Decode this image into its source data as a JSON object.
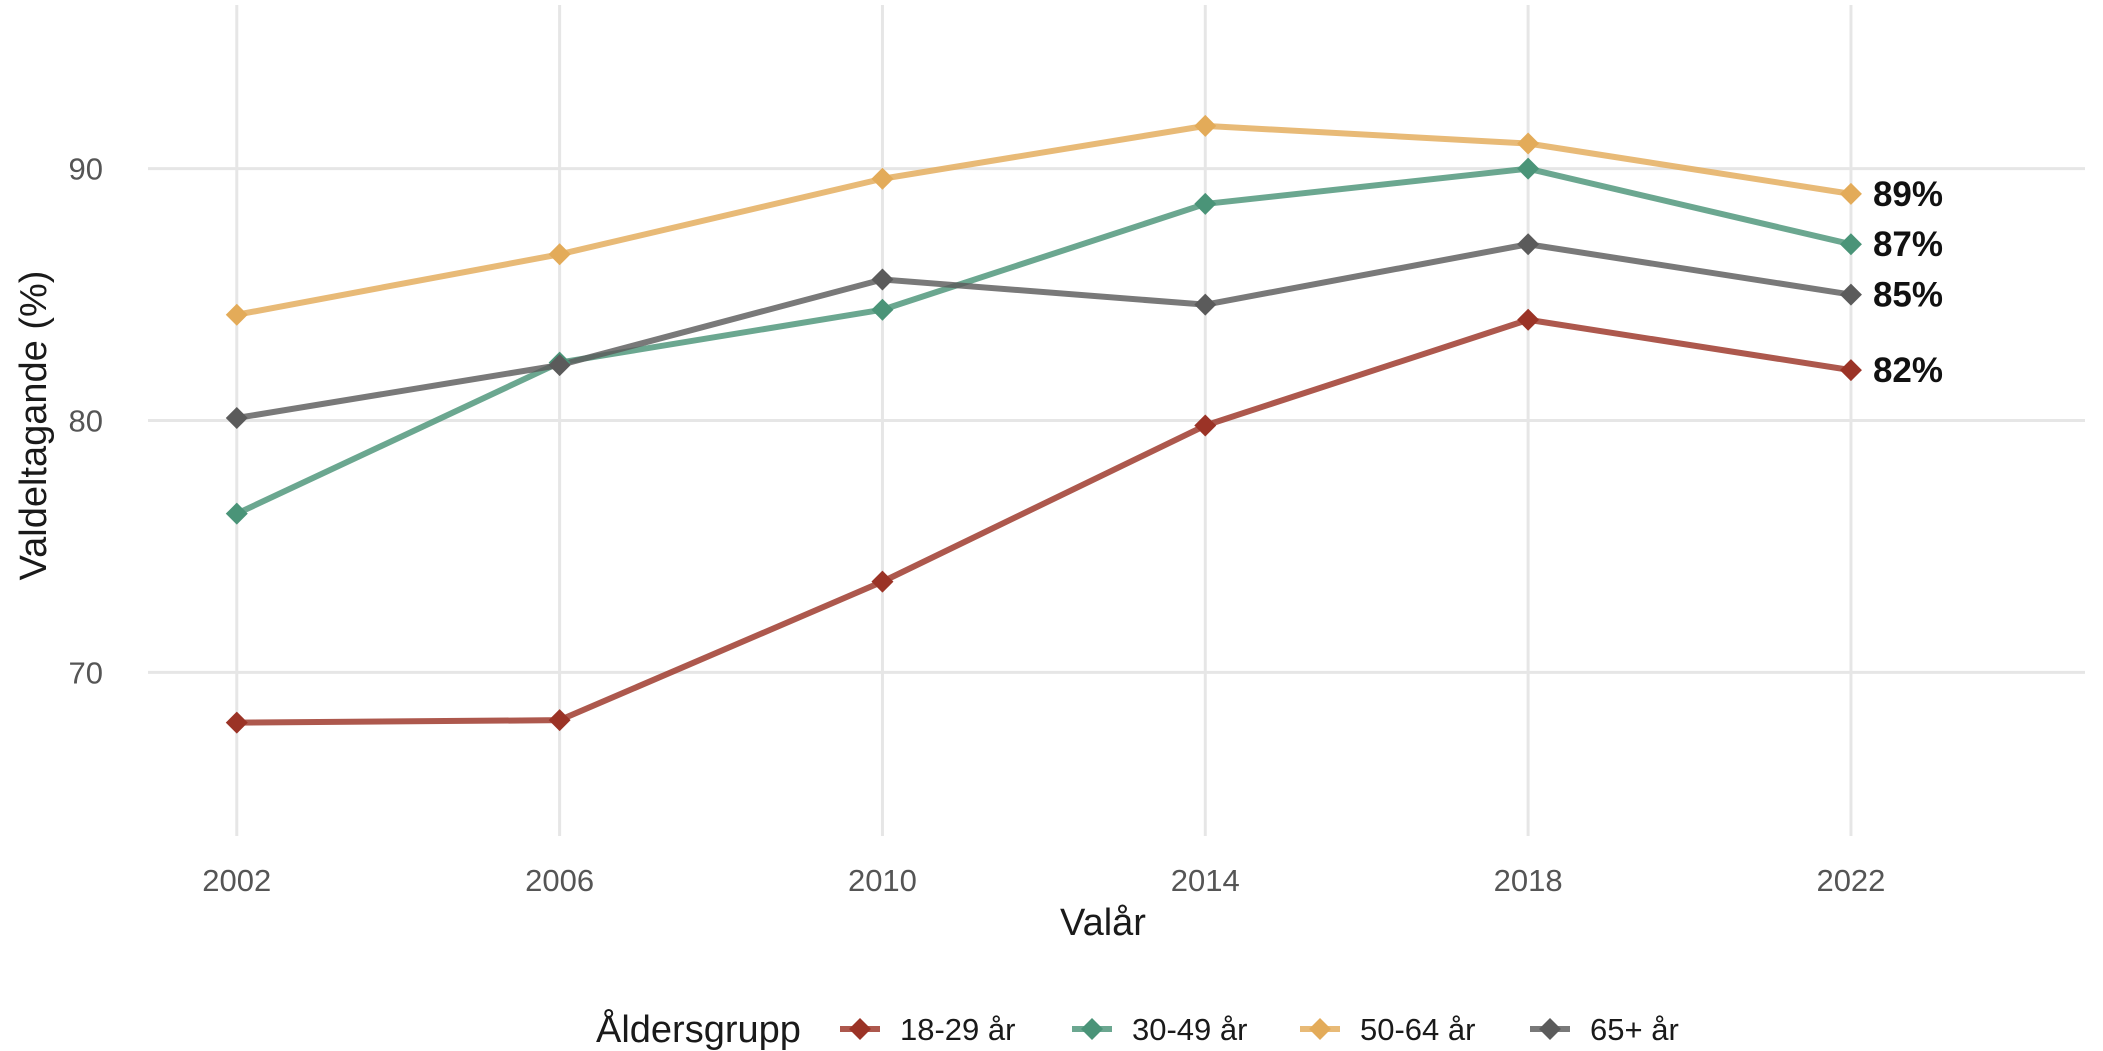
{
  "chart_data": {
    "type": "line",
    "title": "",
    "xlabel": "Valår",
    "ylabel": "Valdeltagande (%)",
    "x": [
      2002,
      2006,
      2010,
      2014,
      2018,
      2022
    ],
    "x_ticks": [
      "2002",
      "2006",
      "2010",
      "2014",
      "2018",
      "2022"
    ],
    "y_ticks": [
      "70",
      "80",
      "90"
    ],
    "xlim": [
      2000.9,
      2024.9
    ],
    "ylim": [
      63.5,
      96.5
    ],
    "grid": true,
    "legend": {
      "title": "Åldersgrupp",
      "placement": "bottom"
    },
    "series": [
      {
        "name": "18-29 år",
        "color": "#9b3326",
        "values": [
          68.0,
          68.1,
          73.6,
          79.8,
          84.0,
          82.0
        ],
        "end_label": "82%"
      },
      {
        "name": "30-49 år",
        "color": "#4a9478",
        "values": [
          76.3,
          82.3,
          84.4,
          88.6,
          90.0,
          87.0
        ],
        "end_label": "87%"
      },
      {
        "name": "50-64 år",
        "color": "#e3ab59",
        "values": [
          84.2,
          86.6,
          89.6,
          91.7,
          91.0,
          89.0
        ],
        "end_label": "89%"
      },
      {
        "name": "65+ år",
        "color": "#5b5b5b",
        "values": [
          80.1,
          82.2,
          85.6,
          84.6,
          87.0,
          85.0
        ],
        "end_label": "85%"
      }
    ]
  }
}
